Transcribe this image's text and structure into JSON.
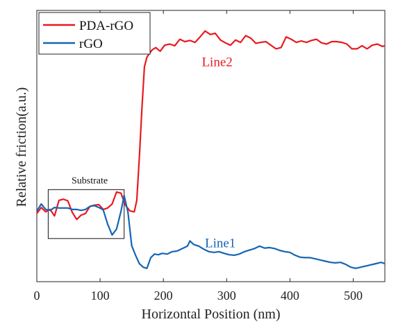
{
  "chart_data": {
    "type": "line",
    "title": "",
    "xlabel": "Horizontal Position (nm)",
    "ylabel": "Relative friction(a.u.)",
    "xlim": [
      0,
      550
    ],
    "ylim": [
      0,
      1
    ],
    "xticks": [
      0,
      100,
      200,
      300,
      400,
      500
    ],
    "xtick_labels": [
      "0",
      "100",
      "200",
      "300",
      "400",
      "500"
    ],
    "y_tick_labels_shown": false,
    "grid": false,
    "legend_position": "top-left",
    "series": [
      {
        "name": "PDA-rGO",
        "color": "#e8191f",
        "x": [
          0,
          7,
          14,
          21,
          28,
          35,
          42,
          49,
          56,
          63,
          70,
          77,
          84,
          91,
          98,
          105,
          112,
          119,
          126,
          133,
          140,
          147,
          154,
          158,
          162,
          166,
          170,
          174,
          178,
          182,
          188,
          195,
          202,
          210,
          218,
          226,
          234,
          242,
          250,
          258,
          266,
          274,
          282,
          290,
          298,
          306,
          314,
          322,
          330,
          338,
          346,
          354,
          362,
          370,
          378,
          386,
          394,
          402,
          410,
          418,
          426,
          434,
          442,
          450,
          458,
          466,
          474,
          482,
          490,
          498,
          506,
          514,
          522,
          530,
          538,
          546,
          550
        ],
        "y": [
          0.245,
          0.27,
          0.252,
          0.262,
          0.235,
          0.3,
          0.305,
          0.298,
          0.25,
          0.22,
          0.238,
          0.245,
          0.275,
          0.28,
          0.282,
          0.262,
          0.268,
          0.285,
          0.335,
          0.33,
          0.28,
          0.256,
          0.252,
          0.3,
          0.48,
          0.68,
          0.86,
          0.9,
          0.915,
          0.93,
          0.94,
          0.925,
          0.95,
          0.955,
          0.948,
          0.975,
          0.965,
          0.97,
          0.962,
          0.985,
          1.01,
          0.995,
          1.0,
          0.972,
          0.96,
          0.95,
          0.972,
          0.962,
          0.99,
          0.98,
          0.958,
          0.962,
          0.965,
          0.95,
          0.935,
          0.94,
          0.985,
          0.975,
          0.962,
          0.968,
          0.962,
          0.97,
          0.975,
          0.96,
          0.955,
          0.965,
          0.965,
          0.962,
          0.955,
          0.935,
          0.935,
          0.948,
          0.935,
          0.95,
          0.955,
          0.945,
          0.948
        ]
      },
      {
        "name": "rGO",
        "color": "#1464b4",
        "x": [
          0,
          7,
          14,
          21,
          28,
          35,
          42,
          49,
          56,
          63,
          70,
          77,
          84,
          91,
          98,
          105,
          112,
          119,
          126,
          133,
          138,
          144,
          150,
          156,
          162,
          168,
          174,
          180,
          186,
          192,
          198,
          206,
          214,
          222,
          230,
          238,
          242,
          248,
          256,
          264,
          272,
          280,
          288,
          296,
          304,
          312,
          320,
          328,
          336,
          344,
          352,
          360,
          368,
          376,
          384,
          392,
          400,
          408,
          416,
          424,
          432,
          440,
          448,
          456,
          464,
          472,
          480,
          488,
          496,
          504,
          512,
          520,
          528,
          536,
          544,
          550
        ],
        "y": [
          0.255,
          0.285,
          0.262,
          0.258,
          0.27,
          0.268,
          0.268,
          0.268,
          0.262,
          0.262,
          0.258,
          0.262,
          0.275,
          0.278,
          0.27,
          0.26,
          0.2,
          0.155,
          0.18,
          0.255,
          0.32,
          0.25,
          0.11,
          0.07,
          0.035,
          0.02,
          0.015,
          0.06,
          0.075,
          0.072,
          0.078,
          0.075,
          0.085,
          0.088,
          0.098,
          0.108,
          0.13,
          0.115,
          0.108,
          0.095,
          0.085,
          0.082,
          0.085,
          0.078,
          0.072,
          0.07,
          0.075,
          0.085,
          0.092,
          0.098,
          0.108,
          0.1,
          0.102,
          0.098,
          0.09,
          0.085,
          0.082,
          0.07,
          0.062,
          0.06,
          0.06,
          0.055,
          0.05,
          0.045,
          0.04,
          0.038,
          0.04,
          0.032,
          0.02,
          0.015,
          0.02,
          0.025,
          0.03,
          0.035,
          0.04,
          0.035
        ]
      }
    ],
    "annotations": [
      {
        "id": "line2",
        "text": "Line2",
        "x": 285,
        "y": 0.88,
        "color": "#e8191f"
      },
      {
        "id": "line1",
        "text": "Line1",
        "x": 290,
        "y": 0.12,
        "color": "#1464b4"
      }
    ],
    "substrate_box": {
      "label": "Substrate",
      "x0": 18,
      "x1": 138,
      "y0": 0.14,
      "y1": 0.345
    }
  }
}
